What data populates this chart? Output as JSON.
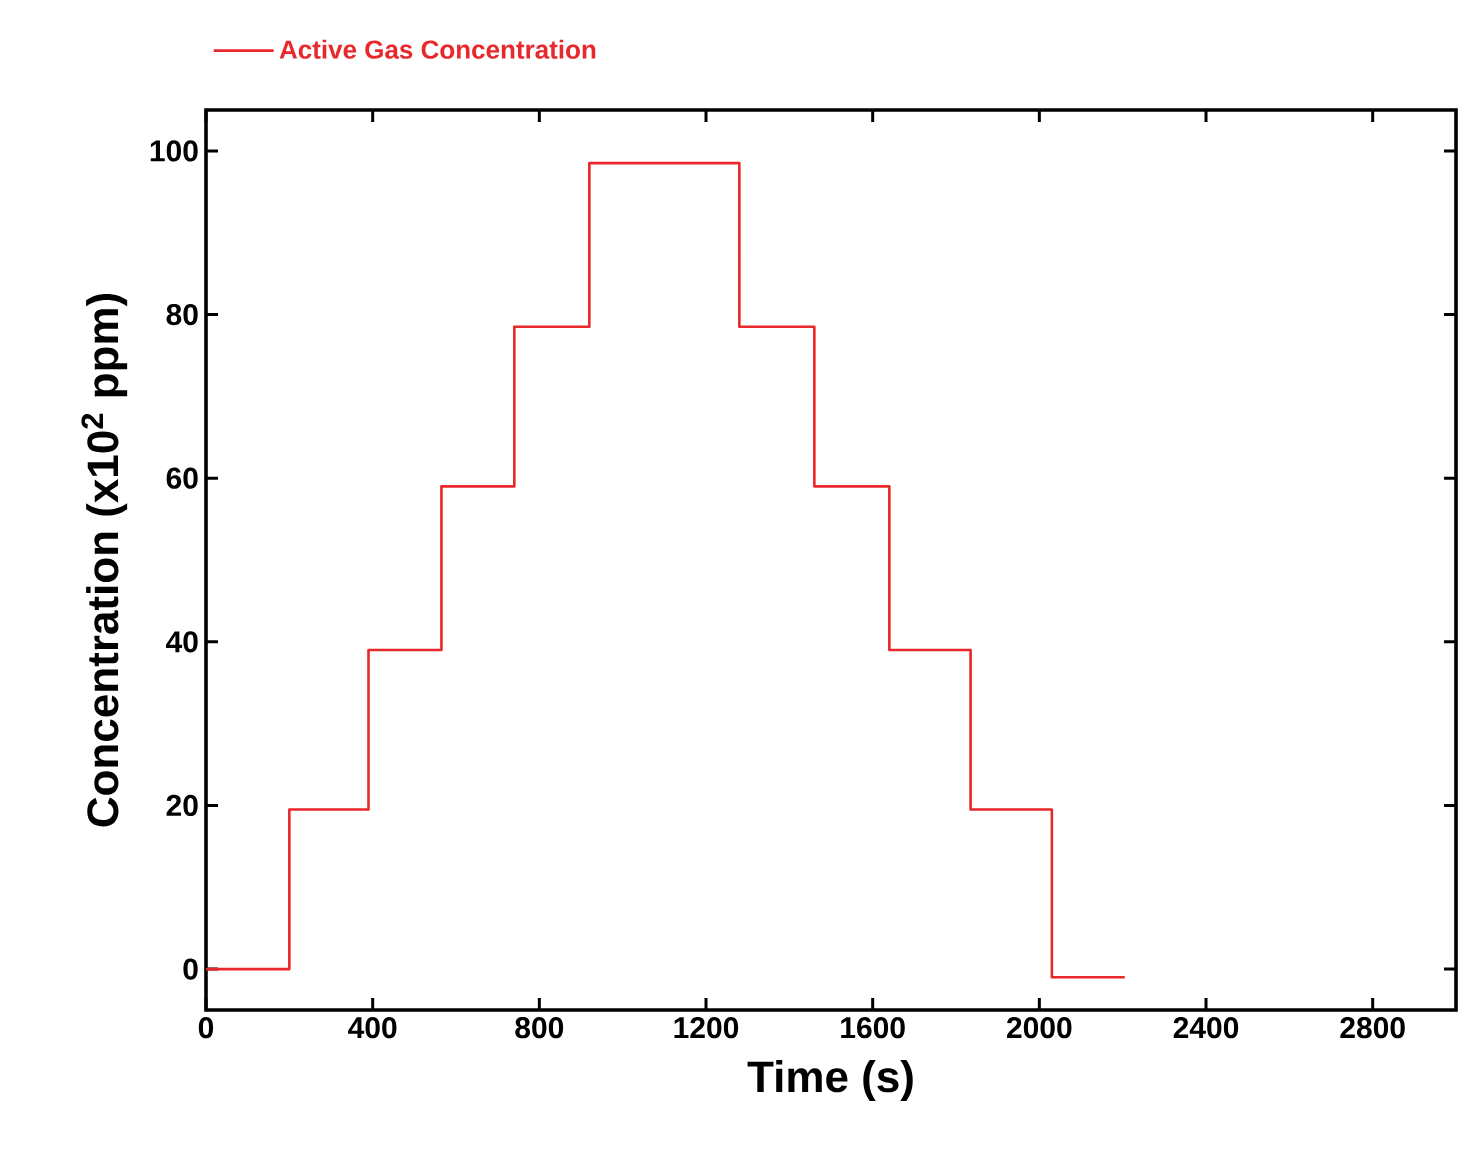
{
  "chart_data": {
    "type": "step",
    "xlabel": "Time (s)",
    "ylabel": "Concentration (x10$^{2}$ ppm)",
    "x": [
      0,
      200,
      390,
      565,
      740,
      920,
      1280,
      1460,
      1640,
      1835,
      2030,
      2205
    ],
    "series": [
      {
        "name": "Active Gas Concentration",
        "color": "#e8282b",
        "values": [
          0,
          19.5,
          39,
          59,
          78.5,
          98.5,
          78.5,
          59,
          39,
          19.5,
          -1,
          -1
        ]
      }
    ],
    "xlim": [
      0,
      3000
    ],
    "ylim": [
      -5,
      105
    ],
    "xticks": [
      0,
      400,
      800,
      1200,
      1600,
      2000,
      2400,
      2800
    ],
    "yticks": [
      0,
      20,
      40,
      60,
      80,
      100
    ],
    "legend": "top left",
    "grid": false,
    "marker": "none",
    "line_style": "solid"
  }
}
